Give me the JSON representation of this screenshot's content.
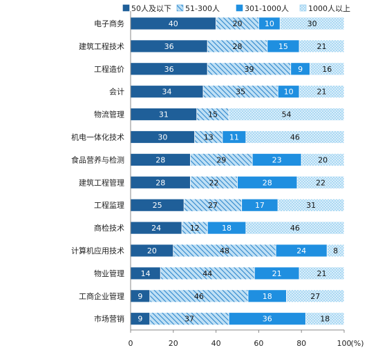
{
  "chart_data": {
    "type": "bar",
    "orientation": "horizontal",
    "stacked": true,
    "categories": [
      "电子商务",
      "建筑工程技术",
      "工程造价",
      "会计",
      "物流管理",
      "机电一体化技术",
      "食品营养与检测",
      "建筑工程管理",
      "工程监理",
      "商检技术",
      "计算机应用技术",
      "物业管理",
      "工商企业管理",
      "市场营销"
    ],
    "series": [
      {
        "name": "50人及以下",
        "color": "#1f5f99",
        "pattern": "solid",
        "label_color": "#ffffff",
        "values": [
          40,
          36,
          36,
          34,
          31,
          30,
          28,
          28,
          25,
          24,
          20,
          14,
          9,
          9
        ]
      },
      {
        "name": "51-300人",
        "color": "#5aa9e0",
        "pattern": "diagonal-hatch",
        "label_color": "#111111",
        "values": [
          20,
          28,
          39,
          35,
          15,
          13,
          29,
          22,
          27,
          12,
          48,
          44,
          46,
          37
        ]
      },
      {
        "name": "301-1000人",
        "color": "#1f8fe0",
        "pattern": "solid",
        "label_color": "#ffffff",
        "values": [
          10,
          15,
          9,
          10,
          0,
          11,
          23,
          28,
          17,
          18,
          24,
          21,
          18,
          36
        ]
      },
      {
        "name": "1000人以上",
        "color": "#8ccbf0",
        "pattern": "dotted",
        "label_color": "#111111",
        "values": [
          30,
          21,
          16,
          21,
          54,
          46,
          20,
          22,
          31,
          46,
          8,
          21,
          27,
          18
        ]
      }
    ],
    "xlim": [
      0,
      100
    ],
    "xticks": [
      0,
      20,
      40,
      60,
      80,
      100
    ],
    "xlabel": "(%)",
    "legend_position": "top-right",
    "grid": false
  }
}
